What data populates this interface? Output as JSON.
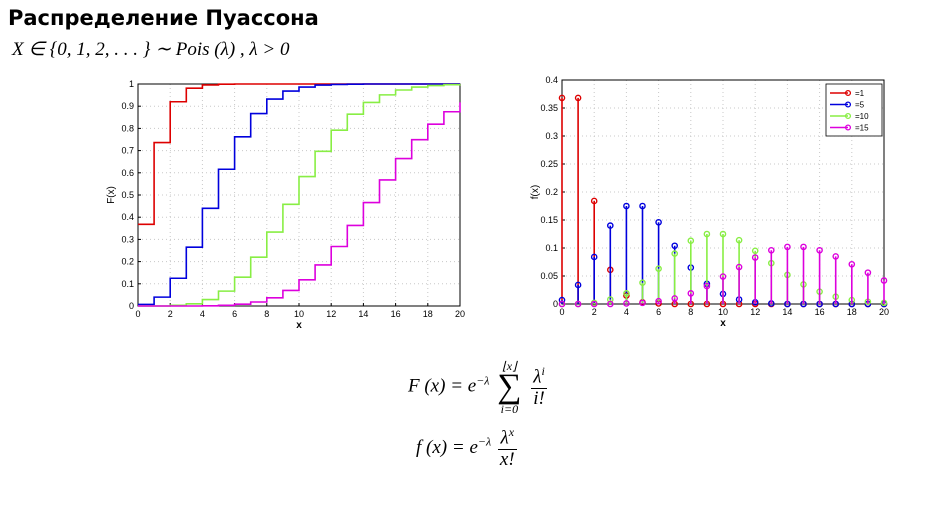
{
  "slide": {
    "title": "Распределение Пуассона",
    "subtitle": "X ∈ {0, 1, 2, . . . } ∼ Pois (λ) , λ > 0"
  },
  "formulas": {
    "cdf_left": "F (x) = e",
    "cdf_exp": "−λ",
    "cdf_sum_top": "⌊x⌋",
    "cdf_sum_sigma": "∑",
    "cdf_sum_bottom": "i=0",
    "cdf_num": "λ",
    "cdf_num_exp": "i",
    "cdf_den": "i!",
    "pmf_left": "f (x) = e",
    "pmf_exp": "−λ",
    "pmf_num": "λ",
    "pmf_num_exp": "x",
    "pmf_den": "x!"
  },
  "colors": {
    "lambda1": "#dd0000",
    "lambda5": "#0000dd",
    "lambda10": "#88ee44",
    "lambda15": "#dd00dd"
  },
  "chart_data": [
    {
      "type": "line",
      "subtype": "step",
      "xlabel": "x",
      "ylabel": "F(x)",
      "xlim": [
        0,
        20
      ],
      "ylim": [
        0,
        1
      ],
      "xticks": [
        "0",
        "2",
        "4",
        "6",
        "8",
        "10",
        "12",
        "14",
        "16",
        "18",
        "20"
      ],
      "yticks": [
        "0",
        "0.1",
        "0.2",
        "0.3",
        "0.4",
        "0.5",
        "0.6",
        "0.7",
        "0.8",
        "0.9",
        "1"
      ],
      "grid": true,
      "x": [
        0,
        1,
        2,
        3,
        4,
        5,
        6,
        7,
        8,
        9,
        10,
        11,
        12,
        13,
        14,
        15,
        16,
        17,
        18,
        19,
        20
      ],
      "series": [
        {
          "color": "#dd0000",
          "values": [
            0.368,
            0.736,
            0.92,
            0.981,
            0.996,
            0.999,
            1,
            1,
            1,
            1,
            1,
            1,
            1,
            1,
            1,
            1,
            1,
            1,
            1,
            1,
            1
          ]
        },
        {
          "color": "#0000dd",
          "values": [
            0.007,
            0.04,
            0.125,
            0.265,
            0.44,
            0.616,
            0.762,
            0.867,
            0.932,
            0.968,
            0.986,
            0.995,
            0.998,
            0.999,
            1,
            1,
            1,
            1,
            1,
            1,
            1
          ]
        },
        {
          "color": "#88ee44",
          "values": [
            0.0,
            0.0,
            0.003,
            0.01,
            0.029,
            0.067,
            0.13,
            0.22,
            0.333,
            0.458,
            0.583,
            0.697,
            0.792,
            0.864,
            0.917,
            0.951,
            0.973,
            0.986,
            0.993,
            0.997,
            0.998
          ]
        },
        {
          "color": "#dd00dd",
          "values": [
            0.0,
            0.0,
            0.0,
            0.0,
            0.001,
            0.003,
            0.008,
            0.018,
            0.037,
            0.07,
            0.118,
            0.185,
            0.268,
            0.363,
            0.466,
            0.568,
            0.664,
            0.749,
            0.819,
            0.875,
            0.917
          ]
        }
      ]
    },
    {
      "type": "scatter",
      "subtype": "stem",
      "xlabel": "x",
      "ylabel": "f(x)",
      "xlim": [
        0,
        20
      ],
      "ylim": [
        0,
        0.4
      ],
      "xticks": [
        "0",
        "2",
        "4",
        "6",
        "8",
        "10",
        "12",
        "14",
        "16",
        "18",
        "20"
      ],
      "yticks": [
        "0",
        "0.05",
        "0.1",
        "0.15",
        "0.2",
        "0.25",
        "0.3",
        "0.35",
        "0.4"
      ],
      "grid": true,
      "legend_position": "top-right",
      "x": [
        0,
        1,
        2,
        3,
        4,
        5,
        6,
        7,
        8,
        9,
        10,
        11,
        12,
        13,
        14,
        15,
        16,
        17,
        18,
        19,
        20
      ],
      "series": [
        {
          "name": "=1",
          "color": "#dd0000",
          "values": [
            0.368,
            0.368,
            0.184,
            0.061,
            0.015,
            0.003,
            0.001,
            0,
            0,
            0,
            0,
            0,
            0,
            0,
            0,
            0,
            0,
            0,
            0,
            0,
            0
          ]
        },
        {
          "name": "=5",
          "color": "#0000dd",
          "values": [
            0.007,
            0.034,
            0.084,
            0.14,
            0.175,
            0.175,
            0.146,
            0.104,
            0.065,
            0.036,
            0.018,
            0.008,
            0.003,
            0.001,
            0,
            0,
            0,
            0,
            0,
            0,
            0
          ]
        },
        {
          "name": "=10",
          "color": "#88ee44",
          "values": [
            0,
            0,
            0.002,
            0.008,
            0.019,
            0.038,
            0.063,
            0.09,
            0.113,
            0.125,
            0.125,
            0.114,
            0.095,
            0.073,
            0.052,
            0.035,
            0.022,
            0.013,
            0.007,
            0.004,
            0.002
          ]
        },
        {
          "name": "=15",
          "color": "#dd00dd",
          "values": [
            0,
            0,
            0,
            0,
            0.001,
            0.002,
            0.005,
            0.01,
            0.019,
            0.032,
            0.049,
            0.066,
            0.083,
            0.096,
            0.102,
            0.102,
            0.096,
            0.085,
            0.071,
            0.056,
            0.042
          ]
        }
      ]
    }
  ]
}
